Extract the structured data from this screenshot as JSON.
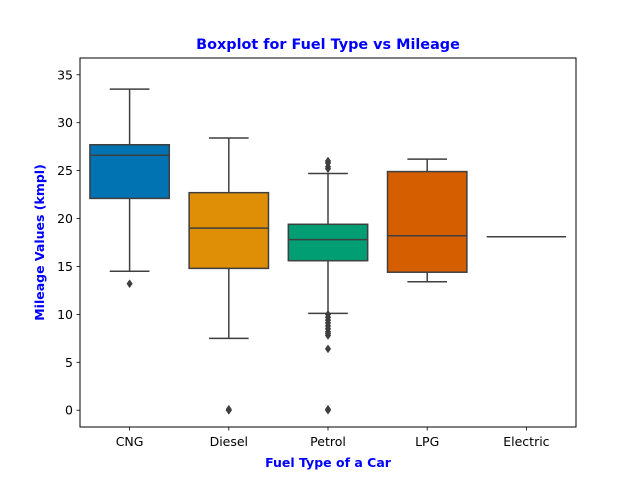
{
  "chart_data": {
    "type": "boxplot",
    "title": "Boxplot for Fuel Type vs Mileage",
    "xlabel": "Fuel Type of a Car",
    "ylabel": "Mileage Values (kmpl)",
    "ylim": [
      -1.75,
      36.75
    ],
    "yticks": [
      0,
      5,
      10,
      15,
      20,
      25,
      30,
      35
    ],
    "ytick_labels": [
      "0",
      "5",
      "10",
      "15",
      "20",
      "25",
      "30",
      "35"
    ],
    "categories": [
      "CNG",
      "Diesel",
      "Petrol",
      "LPG",
      "Electric"
    ],
    "grid": false,
    "legend": "none",
    "boxes": [
      {
        "category": "CNG",
        "whisker_low": 14.5,
        "q1": 22.1,
        "median": 26.6,
        "q3": 27.7,
        "whisker_high": 33.5,
        "outliers": [
          13.2
        ],
        "color": "#0173b2"
      },
      {
        "category": "Diesel",
        "whisker_low": 7.5,
        "q1": 14.8,
        "median": 19.0,
        "q3": 22.7,
        "whisker_high": 28.4,
        "outliers": [
          0.0,
          0.0,
          0.1
        ],
        "color": "#de8f05"
      },
      {
        "category": "Petrol",
        "whisker_low": 10.1,
        "q1": 15.6,
        "median": 17.8,
        "q3": 19.4,
        "whisker_high": 24.7,
        "outliers": [
          0.0,
          0.1,
          6.4,
          7.8,
          8.0,
          8.2,
          8.5,
          8.8,
          9.1,
          9.4,
          9.7,
          10.0,
          25.2,
          25.4,
          25.8,
          26.0
        ],
        "color": "#029e73"
      },
      {
        "category": "LPG",
        "whisker_low": 13.4,
        "q1": 14.4,
        "median": 18.2,
        "q3": 24.9,
        "whisker_high": 26.2,
        "outliers": [],
        "color": "#d55e00"
      },
      {
        "category": "Electric",
        "whisker_low": 18.1,
        "q1": 18.1,
        "median": 18.1,
        "q3": 18.1,
        "whisker_high": 18.1,
        "outliers": [],
        "color": "#cc78bc"
      }
    ]
  },
  "colors": {
    "title": "#0000ff",
    "axis_label": "#0000ff",
    "line": "#3f3f3f",
    "tick": "#000000"
  }
}
